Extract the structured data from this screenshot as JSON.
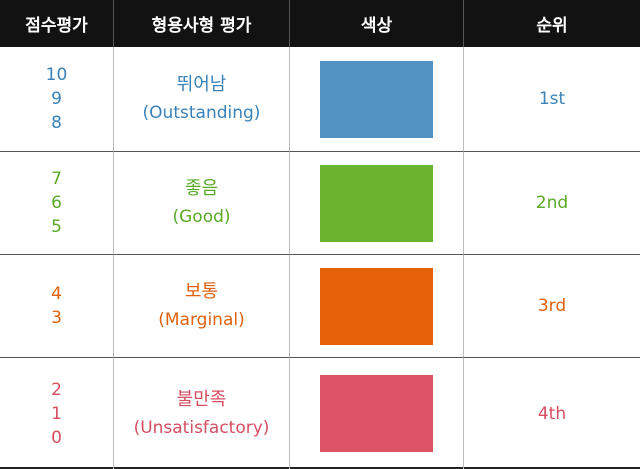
{
  "header": {
    "col_score": "점수평가",
    "col_rating": "형용사형 평가",
    "col_color": "색상",
    "col_rank": "순위"
  },
  "rows": [
    {
      "scores": [
        "10",
        "9",
        "8"
      ],
      "rating_ko": "뛰어남",
      "rating_en": "(Outstanding)",
      "rank": "1st",
      "text_color": "#3a82b8",
      "swatch_color": "#5192c2"
    },
    {
      "scores": [
        "7",
        "6",
        "5"
      ],
      "rating_ko": "좋음",
      "rating_en": "(Good)",
      "rank": "2nd",
      "text_color": "#5aaa28",
      "swatch_color": "#6bb42f"
    },
    {
      "scores": [
        "4",
        "3"
      ],
      "rating_ko": "보통",
      "rating_en": "(Marginal)",
      "rank": "3rd",
      "text_color": "#e06210",
      "swatch_color": "#e5620a"
    },
    {
      "scores": [
        "2",
        "1",
        "0"
      ],
      "rating_ko": "불만족",
      "rating_en": "(Unsatisfactory)",
      "rank": "4th",
      "text_color": "#d64e62",
      "swatch_color": "#dd5365"
    }
  ]
}
